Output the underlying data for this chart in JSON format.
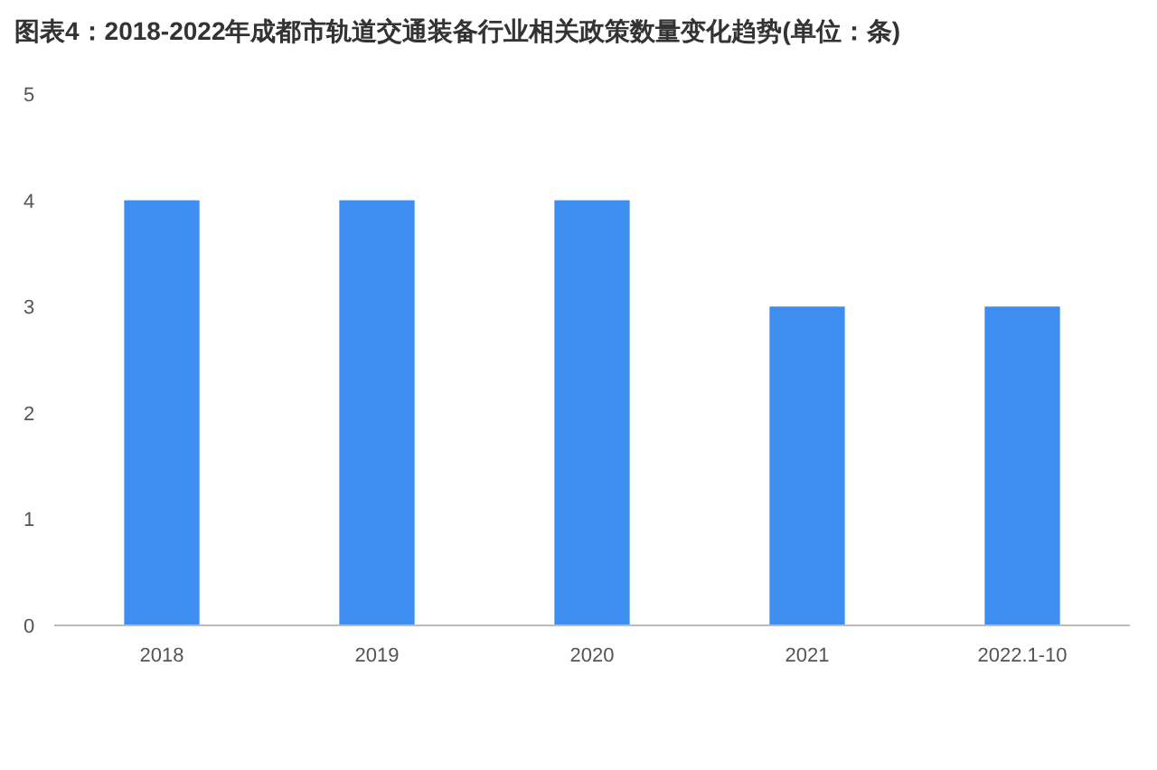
{
  "chart_data": {
    "type": "bar",
    "title": "图表4：2018-2022年成都市轨道交通装备行业相关政策数量变化趋势(单位：条)",
    "categories": [
      "2018",
      "2019",
      "2020",
      "2021",
      "2022.1-10"
    ],
    "values": [
      4,
      4,
      4,
      3,
      3
    ],
    "color": "#3d8ef0",
    "ylim": [
      0,
      5
    ],
    "yticks": [
      0,
      1,
      2,
      3,
      4,
      5
    ],
    "grid": false
  }
}
